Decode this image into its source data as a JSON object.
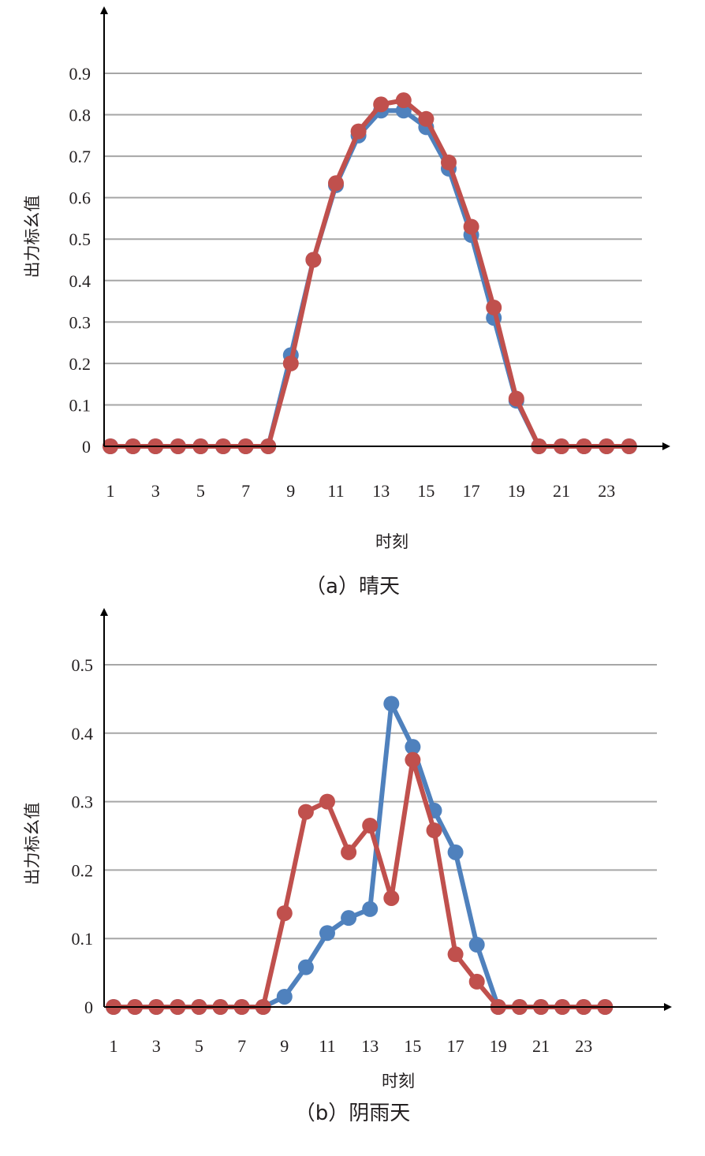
{
  "colors": {
    "series_1": "#4f81bd",
    "series_2": "#c0504d",
    "grid": "#a6a6a6",
    "axis": "#000000"
  },
  "chart_data": [
    {
      "type": "line",
      "caption": "（a）晴天",
      "xlabel": "时刻",
      "ylabel": "出力标幺值",
      "ylim": [
        0,
        0.9
      ],
      "yticks": [
        "0",
        "0.1",
        "0.2",
        "0.3",
        "0.4",
        "0.5",
        "0.6",
        "0.7",
        "0.8",
        "0.9"
      ],
      "xticks": [
        "1",
        "3",
        "5",
        "7",
        "9",
        "11",
        "13",
        "15",
        "17",
        "19",
        "21",
        "23"
      ],
      "grid": true,
      "legend": "none",
      "x": [
        1,
        2,
        3,
        4,
        5,
        6,
        7,
        8,
        9,
        10,
        11,
        12,
        13,
        14,
        15,
        16,
        17,
        18,
        19,
        20,
        21,
        22,
        23,
        24
      ],
      "series": [
        {
          "color": "#4f81bd",
          "values": [
            0,
            0,
            0,
            0,
            0,
            0,
            0,
            0,
            0.22,
            0.45,
            0.63,
            0.75,
            0.81,
            0.81,
            0.77,
            0.67,
            0.51,
            0.31,
            0.11,
            0,
            0,
            0,
            0,
            0
          ]
        },
        {
          "color": "#c0504d",
          "values": [
            0,
            0,
            0,
            0,
            0,
            0,
            0,
            0,
            0.2,
            0.45,
            0.635,
            0.76,
            0.825,
            0.835,
            0.79,
            0.685,
            0.53,
            0.335,
            0.115,
            0,
            0,
            0,
            0,
            0
          ]
        }
      ]
    },
    {
      "type": "line",
      "caption": "（b）阴雨天",
      "xlabel": "时刻",
      "ylabel": "出力标幺值",
      "ylim": [
        0,
        0.5
      ],
      "yticks": [
        "0",
        "0.1",
        "0.2",
        "0.3",
        "0.4",
        "0.5"
      ],
      "xticks": [
        "1",
        "3",
        "5",
        "7",
        "9",
        "11",
        "13",
        "15",
        "17",
        "19",
        "21",
        "23"
      ],
      "grid": true,
      "legend": "none",
      "x": [
        1,
        2,
        3,
        4,
        5,
        6,
        7,
        8,
        9,
        10,
        11,
        12,
        13,
        14,
        15,
        16,
        17,
        18,
        19,
        20,
        21,
        22,
        23,
        24
      ],
      "series": [
        {
          "color": "#4f81bd",
          "values": [
            0,
            0,
            0,
            0,
            0,
            0,
            0,
            0,
            0.015,
            0.058,
            0.108,
            0.13,
            0.143,
            0.443,
            0.38,
            0.287,
            0.226,
            0.091,
            0,
            0,
            0,
            0,
            0,
            0
          ]
        },
        {
          "color": "#c0504d",
          "values": [
            0,
            0,
            0,
            0,
            0,
            0,
            0,
            0,
            0.137,
            0.285,
            0.3,
            0.226,
            0.265,
            0.159,
            0.361,
            0.258,
            0.077,
            0.037,
            0,
            0,
            0,
            0,
            0,
            0
          ]
        }
      ]
    }
  ]
}
